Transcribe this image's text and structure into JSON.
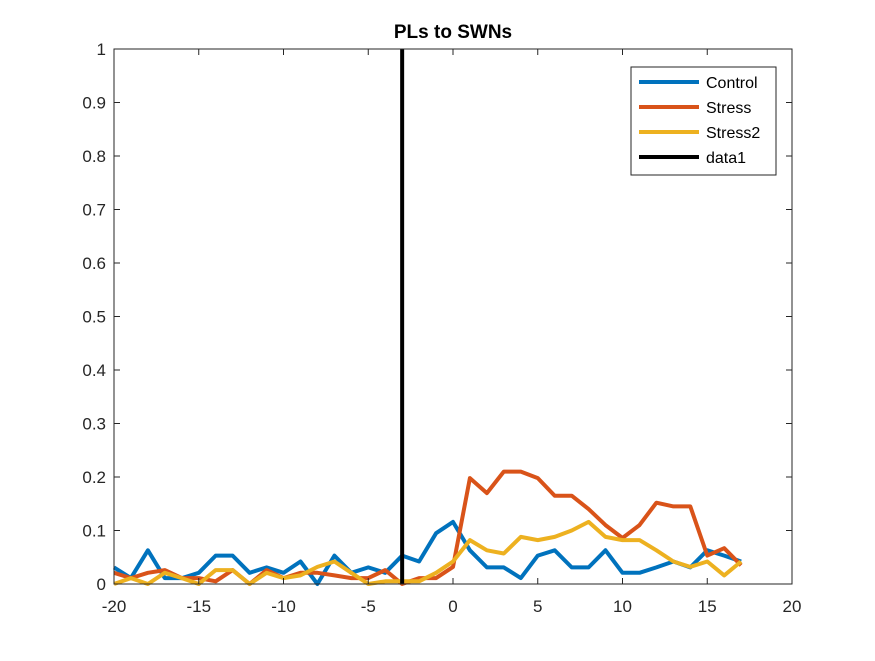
{
  "chart_data": {
    "type": "line",
    "title": "PLs to SWNs",
    "xlabel": "",
    "ylabel": "",
    "xlim": [
      -20,
      20
    ],
    "ylim": [
      0,
      1
    ],
    "x_ticks": [
      -20,
      -15,
      -10,
      -5,
      0,
      5,
      10,
      15,
      20
    ],
    "y_ticks": [
      0,
      0.1,
      0.2,
      0.3,
      0.4,
      0.5,
      0.6,
      0.7,
      0.8,
      0.9,
      1
    ],
    "x_tick_labels": [
      "-20",
      "-15",
      "-10",
      "-5",
      "0",
      "5",
      "10",
      "15",
      "20"
    ],
    "y_tick_labels": [
      "0",
      "0.1",
      "0.2",
      "0.3",
      "0.4",
      "0.5",
      "0.6",
      "0.7",
      "0.8",
      "0.9",
      "1"
    ],
    "grid": false,
    "legend_position": "top-right",
    "x": [
      -20,
      -19,
      -18,
      -17,
      -16,
      -15,
      -14,
      -13,
      -12,
      -11,
      -10,
      -9,
      -8,
      -7,
      -6,
      -5,
      -4,
      -3,
      -2,
      -1,
      0,
      1,
      2,
      3,
      4,
      5,
      6,
      7,
      8,
      9,
      10,
      11,
      12,
      13,
      14,
      15,
      16,
      17
    ],
    "series": [
      {
        "name": "Control",
        "color": "#0072BD",
        "values": [
          0.031,
          0.011,
          0.063,
          0.011,
          0.011,
          0.021,
          0.053,
          0.053,
          0.021,
          0.031,
          0.021,
          0.042,
          0.0,
          0.053,
          0.021,
          0.031,
          0.021,
          0.053,
          0.042,
          0.095,
          0.116,
          0.063,
          0.031,
          0.031,
          0.011,
          0.053,
          0.063,
          0.031,
          0.031,
          0.063,
          0.021,
          0.021,
          0.031,
          0.042,
          0.031,
          0.063,
          0.053,
          0.042
        ]
      },
      {
        "name": "Stress",
        "color": "#D95319",
        "values": [
          0.021,
          0.011,
          0.021,
          0.026,
          0.011,
          0.011,
          0.005,
          0.026,
          0.0,
          0.026,
          0.011,
          0.021,
          0.021,
          0.016,
          0.011,
          0.011,
          0.026,
          0.0,
          0.011,
          0.011,
          0.032,
          0.198,
          0.17,
          0.21,
          0.21,
          0.198,
          0.165,
          0.165,
          0.14,
          0.11,
          0.086,
          0.11,
          0.152,
          0.145,
          0.145,
          0.053,
          0.067,
          0.035
        ]
      },
      {
        "name": "Stress2",
        "color": "#EDB120",
        "values": [
          0.0,
          0.011,
          0.0,
          0.021,
          0.011,
          0.0,
          0.026,
          0.026,
          0.0,
          0.021,
          0.011,
          0.016,
          0.032,
          0.042,
          0.021,
          0.0,
          0.005,
          0.005,
          0.005,
          0.021,
          0.042,
          0.082,
          0.063,
          0.057,
          0.088,
          0.082,
          0.088,
          0.1,
          0.116,
          0.088,
          0.082,
          0.082,
          0.063,
          0.042,
          0.032,
          0.042,
          0.016,
          0.042
        ]
      }
    ],
    "vertical_line": {
      "name": "data1",
      "color": "#000000",
      "x": -3
    }
  }
}
